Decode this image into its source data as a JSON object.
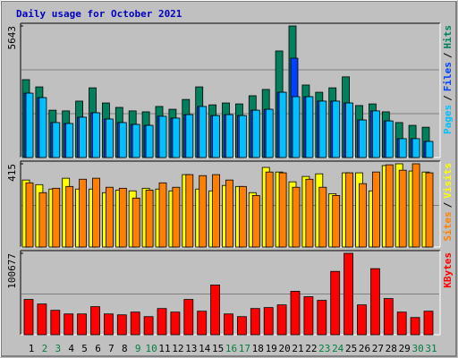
{
  "chart_data": [
    {
      "type": "bar",
      "title": "Daily usage for October 2021",
      "categories": [
        "1",
        "2",
        "3",
        "4",
        "5",
        "6",
        "7",
        "8",
        "9",
        "10",
        "11",
        "12",
        "13",
        "14",
        "15",
        "16",
        "17",
        "18",
        "19",
        "20",
        "21",
        "22",
        "23",
        "24",
        "25",
        "26",
        "27",
        "28",
        "29",
        "30",
        "31"
      ],
      "category_colors": [
        "#000000",
        "#008040",
        "#008040",
        "#000000",
        "#000000",
        "#000000",
        "#000000",
        "#000000",
        "#008040",
        "#008040",
        "#000000",
        "#000000",
        "#000000",
        "#000000",
        "#000000",
        "#008040",
        "#008040",
        "#000000",
        "#000000",
        "#000000",
        "#000000",
        "#000000",
        "#008040",
        "#008040",
        "#000000",
        "#000000",
        "#000000",
        "#000000",
        "#000000",
        "#008040",
        "#008040"
      ],
      "legend_separator": "/",
      "ylim": [
        0,
        5643
      ],
      "yticks": [
        5643
      ],
      "series": [
        {
          "name": "Hits",
          "color": "#00805c",
          "values": [
            3340,
            3030,
            2030,
            2000,
            2420,
            2990,
            2340,
            2150,
            2000,
            1960,
            2190,
            2070,
            2490,
            3030,
            2260,
            2340,
            2300,
            2650,
            2920,
            4570,
            5643,
            3110,
            2800,
            2990,
            3460,
            2230,
            2300,
            1960,
            1500,
            1380,
            1300
          ]
        },
        {
          "name": "Files",
          "color": "#0040ff",
          "values": [
            2760,
            2570,
            1500,
            1460,
            1730,
            1920,
            1650,
            1500,
            1420,
            1380,
            1770,
            1690,
            1840,
            2190,
            1800,
            1840,
            1800,
            2030,
            2070,
            2800,
            4260,
            2610,
            2420,
            2420,
            2340,
            1610,
            2000,
            1570,
            810,
            810,
            690
          ]
        },
        {
          "name": "Pages",
          "color": "#00c0ff",
          "values": [
            2760,
            2570,
            1500,
            1460,
            1730,
            1920,
            1650,
            1500,
            1420,
            1380,
            1770,
            1690,
            1840,
            2190,
            1800,
            1840,
            1800,
            2030,
            2070,
            2800,
            2610,
            2610,
            2420,
            2420,
            2340,
            1610,
            2000,
            1570,
            810,
            810,
            690
          ]
        }
      ]
    },
    {
      "type": "bar",
      "ylim": [
        0,
        415
      ],
      "yticks": [
        415
      ],
      "series": [
        {
          "name": "Visits",
          "color": "#ffff00",
          "values": [
            334,
            311,
            289,
            343,
            289,
            289,
            271,
            284,
            280,
            293,
            289,
            280,
            361,
            289,
            280,
            307,
            302,
            271,
            397,
            374,
            325,
            352,
            365,
            266,
            370,
            370,
            280,
            406,
            415,
            379,
            374
          ]
        },
        {
          "name": "Sites",
          "color": "#ff8000",
          "values": [
            320,
            271,
            293,
            302,
            338,
            343,
            298,
            293,
            244,
            284,
            320,
            298,
            361,
            356,
            361,
            334,
            302,
            257,
            374,
            370,
            298,
            338,
            298,
            257,
            370,
            316,
            374,
            410,
            383,
            415,
            370
          ]
        }
      ]
    },
    {
      "type": "bar",
      "ylim": [
        0,
        100677
      ],
      "yticks": [
        100677
      ],
      "series": [
        {
          "name": "KBytes",
          "color": "#ff0000",
          "values": [
            43600,
            38000,
            30200,
            25700,
            25700,
            34700,
            25700,
            24600,
            28000,
            22400,
            32400,
            28000,
            43600,
            29100,
            61500,
            25700,
            22400,
            32400,
            33600,
            36900,
            53700,
            47000,
            42500,
            78300,
            100677,
            36900,
            81700,
            44700,
            28000,
            21300,
            29100
          ]
        }
      ]
    }
  ]
}
